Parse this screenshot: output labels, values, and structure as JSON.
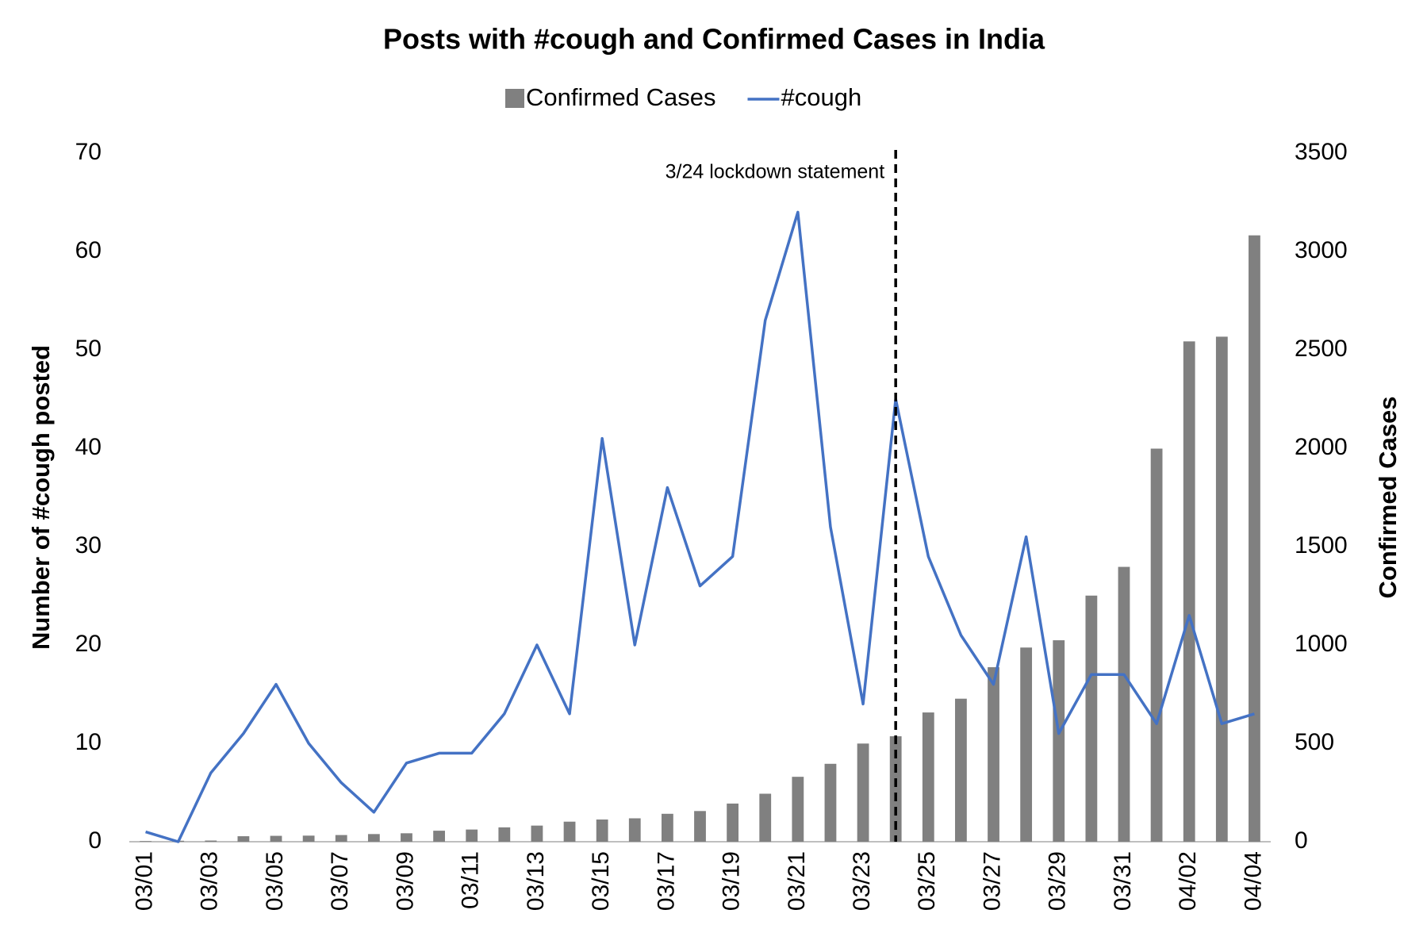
{
  "chart_data": {
    "type": "combo",
    "title": "Posts with #cough and Confirmed Cases in India",
    "categories": [
      "03/01",
      null,
      "03/03",
      null,
      "03/05",
      null,
      "03/07",
      null,
      "03/09",
      null,
      "03/11",
      null,
      "03/13",
      null,
      "03/15",
      null,
      "03/17",
      null,
      "03/19",
      null,
      "03/21",
      null,
      "03/23",
      null,
      "03/25",
      null,
      "03/27",
      null,
      "03/29",
      null,
      "03/31",
      null,
      "04/02",
      null,
      "04/04"
    ],
    "series": [
      {
        "name": "Confirmed Cases",
        "type": "bar",
        "color": "#808080",
        "axis": "y2",
        "values": [
          3,
          5,
          6,
          28,
          30,
          31,
          34,
          39,
          43,
          56,
          62,
          73,
          82,
          102,
          113,
          119,
          142,
          156,
          194,
          244,
          330,
          396,
          499,
          536,
          657,
          727,
          887,
          987,
          1024,
          1251,
          1397,
          1998,
          2543,
          2567,
          3082
        ]
      },
      {
        "name": "#cough",
        "type": "line",
        "color": "#4472c4",
        "values": [
          1,
          0,
          7,
          11,
          16,
          10,
          6,
          3,
          8,
          9,
          9,
          13,
          20,
          13,
          41,
          20,
          36,
          26,
          29,
          53,
          64,
          32,
          14,
          45,
          29,
          21,
          16,
          31,
          11,
          17,
          17,
          12,
          23,
          12,
          13
        ]
      }
    ],
    "ylabel": "Number of #cough posted",
    "y2label": "Confirmed Cases",
    "ylim": [
      0,
      70
    ],
    "yticks": [
      0,
      10,
      20,
      30,
      40,
      50,
      60,
      70
    ],
    "y2lim": [
      0,
      3500
    ],
    "y2ticks": [
      0,
      500,
      1000,
      1500,
      2000,
      2500,
      3000,
      3500
    ],
    "annotation": {
      "text": "3/24 lockdown statement",
      "x": "03/24"
    },
    "grid": false,
    "legend": "top"
  }
}
